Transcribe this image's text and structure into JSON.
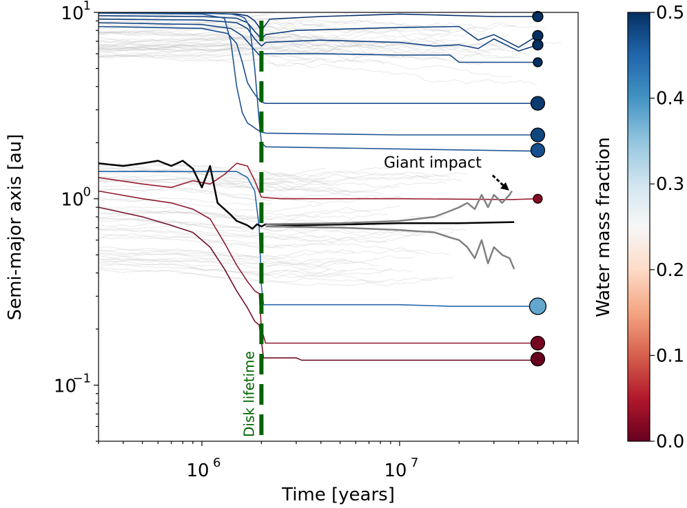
{
  "chart_data": {
    "type": "line",
    "xlabel": "Time [years]",
    "ylabel": "Semi-major axis [au]",
    "x_scale": "log",
    "y_scale": "log",
    "xlim": [
      300000,
      80000000
    ],
    "ylim": [
      0.05,
      10
    ],
    "x_ticks": [
      {
        "value": 1000000,
        "base": "10",
        "exp": "6"
      },
      {
        "value": 10000000,
        "base": "10",
        "exp": "7"
      }
    ],
    "y_ticks": [
      {
        "value": 0.1,
        "base": "10",
        "exp": "−1"
      },
      {
        "value": 1,
        "base": "10",
        "exp": "0"
      },
      {
        "value": 10,
        "base": "10",
        "exp": "1"
      }
    ],
    "colorbar": {
      "label": "Water mass fraction",
      "range": [
        0.0,
        0.5
      ],
      "tick_labels": [
        "0.0",
        "0.1",
        "0.2",
        "0.3",
        "0.4",
        "0.5"
      ],
      "colormap": "RdBu",
      "colors": [
        "#67001f",
        "#b2182b",
        "#d6604d",
        "#f4a582",
        "#fddbc7",
        "#f7f7f7",
        "#d1e5f0",
        "#92c5de",
        "#4393c3",
        "#2166ac",
        "#053061"
      ]
    },
    "disk_lifetime": {
      "x": 2000000,
      "label": "Disk lifetime",
      "color": "#006400"
    },
    "annotation": {
      "text": "Giant impact",
      "x": 37000000,
      "y": 1.0
    },
    "final_planets": [
      {
        "a": 9.5,
        "wmf": 0.5,
        "size": "small"
      },
      {
        "a": 7.5,
        "wmf": 0.5,
        "size": "small"
      },
      {
        "a": 6.7,
        "wmf": 0.5,
        "size": "small"
      },
      {
        "a": 5.4,
        "wmf": 0.5,
        "size": "tiny"
      },
      {
        "a": 3.25,
        "wmf": 0.49,
        "size": "medium"
      },
      {
        "a": 2.2,
        "wmf": 0.48,
        "size": "medium"
      },
      {
        "a": 1.82,
        "wmf": 0.47,
        "size": "medium"
      },
      {
        "a": 1.0,
        "wmf": 0.02,
        "size": "tiny"
      },
      {
        "a": 0.265,
        "wmf": 0.38,
        "size": "large"
      },
      {
        "a": 0.168,
        "wmf": 0.01,
        "size": "medium"
      },
      {
        "a": 0.138,
        "wmf": 0.0,
        "size": "medium"
      }
    ],
    "series": [
      {
        "color": "#08306b",
        "x": [
          300000,
          1000000,
          1500000,
          1700000,
          1850000,
          2000000,
          2200000,
          4000000,
          10000000,
          30000000,
          50000000
        ],
        "y": [
          9.9,
          9.9,
          9.8,
          9.6,
          9.0,
          8.0,
          9.2,
          9.5,
          9.8,
          9.5,
          9.5
        ]
      },
      {
        "color": "#0b3d7a",
        "x": [
          300000,
          1000000,
          1500000,
          1700000,
          1850000,
          2000000,
          2100000,
          3000000,
          10000000,
          20000000,
          25000000,
          30000000,
          40000000,
          50000000
        ],
        "y": [
          9.6,
          9.5,
          9.3,
          8.8,
          7.9,
          7.2,
          7.6,
          8.0,
          8.3,
          8.4,
          7.1,
          7.6,
          6.5,
          7.5
        ]
      },
      {
        "color": "#103f80",
        "x": [
          300000,
          1000000,
          1500000,
          1700000,
          1850000,
          2000000,
          2100000,
          4000000,
          10000000,
          15000000,
          20000000,
          25000000,
          30000000,
          40000000,
          50000000
        ],
        "y": [
          9.2,
          9.1,
          8.8,
          8.2,
          7.2,
          6.6,
          6.9,
          7.1,
          6.9,
          6.6,
          6.7,
          6.4,
          7.2,
          6.2,
          6.7
        ]
      },
      {
        "color": "#134686",
        "x": [
          300000,
          1000000,
          1400000,
          1600000,
          1800000,
          1950000,
          2050000,
          4000000,
          10000000,
          18000000,
          20000000,
          30000000,
          50000000
        ],
        "y": [
          8.8,
          8.6,
          8.2,
          7.5,
          6.5,
          5.9,
          6.0,
          6.0,
          5.9,
          5.9,
          5.4,
          5.4,
          5.4
        ]
      },
      {
        "color": "#1a4d8c",
        "x": [
          300000,
          1000000,
          1350000,
          1500000,
          1600000,
          1700000,
          1800000,
          1900000,
          2000000,
          2100000,
          3000000,
          10000000,
          50000000
        ],
        "y": [
          8.4,
          8.2,
          7.7,
          6.8,
          5.4,
          4.2,
          3.8,
          3.5,
          3.3,
          3.25,
          3.25,
          3.25,
          3.25
        ]
      },
      {
        "color": "#1d5291",
        "x": [
          300000,
          1000000,
          1300000,
          1400000,
          1500000,
          1600000,
          1700000,
          1800000,
          1900000,
          2000000,
          2100000,
          10000000,
          50000000
        ],
        "y": [
          9.9,
          9.8,
          9.3,
          7.0,
          4.0,
          2.9,
          2.55,
          2.45,
          2.35,
          2.28,
          2.25,
          2.2,
          2.2
        ]
      },
      {
        "color": "#1f5694",
        "x": [
          300000,
          1000000,
          1400000,
          1550000,
          1650000,
          1750000,
          1850000,
          1950000,
          2000000,
          2100000,
          10000000,
          50000000
        ],
        "y": [
          9.9,
          9.9,
          9.8,
          9.6,
          9.3,
          8.3,
          5.0,
          2.6,
          2.0,
          1.9,
          1.85,
          1.8
        ]
      },
      {
        "color": "#2166ac",
        "x": [
          300000,
          1500000,
          1700000,
          1850000,
          1950000,
          2000000,
          2050000,
          10000000,
          18000000,
          50000000
        ],
        "y": [
          1.4,
          1.4,
          1.3,
          1.1,
          0.7,
          0.34,
          0.27,
          0.27,
          0.265,
          0.265
        ]
      },
      {
        "color": "#9b1b30",
        "x": [
          300000,
          500000,
          700000,
          900000,
          1100000,
          1300000,
          1500000,
          1700000,
          1850000,
          2000000,
          2500000,
          10000000,
          37000000,
          50000000
        ],
        "y": [
          1.3,
          1.2,
          1.15,
          1.25,
          1.2,
          1.35,
          1.55,
          1.5,
          1.25,
          1.02,
          1.0,
          1.0,
          0.99,
          1.0
        ]
      },
      {
        "color": "#8c1a2e",
        "x": [
          300000,
          500000,
          700000,
          900000,
          1100000,
          1300000,
          1500000,
          1700000,
          1850000,
          1950000,
          2000000,
          2100000,
          50000000
        ],
        "y": [
          1.1,
          1.0,
          0.95,
          0.88,
          0.78,
          0.58,
          0.44,
          0.36,
          0.32,
          0.31,
          0.2,
          0.168,
          0.168
        ]
      },
      {
        "color": "#6f0f26",
        "x": [
          300000,
          500000,
          700000,
          900000,
          1100000,
          1300000,
          1500000,
          1700000,
          1850000,
          1950000,
          2050000,
          3000000,
          3200000,
          18000000,
          50000000
        ],
        "y": [
          0.9,
          0.8,
          0.72,
          0.66,
          0.55,
          0.42,
          0.32,
          0.26,
          0.22,
          0.21,
          0.14,
          0.14,
          0.136,
          0.136,
          0.136
        ]
      },
      {
        "color": "#000000",
        "width": 2.5,
        "x": [
          300000,
          400000,
          500000,
          600000,
          700000,
          800000,
          900000,
          1000000,
          1100000,
          1200000,
          1300000,
          1400000,
          1500000,
          1600000,
          1700000,
          1800000,
          1900000,
          2000000,
          2100000,
          3000000,
          6000000,
          10000000,
          20000000,
          38000000
        ],
        "y": [
          1.55,
          1.5,
          1.55,
          1.6,
          1.5,
          1.6,
          1.45,
          1.15,
          1.5,
          0.95,
          0.88,
          0.82,
          0.76,
          0.74,
          0.72,
          0.69,
          0.73,
          0.71,
          0.73,
          0.72,
          0.73,
          0.74,
          0.74,
          0.75
        ]
      },
      {
        "color": "#808080",
        "width": 2.5,
        "x": [
          2100000,
          5000000,
          10000000,
          15000000,
          18000000,
          20000000,
          22000000,
          24000000,
          26000000,
          28000000,
          30000000,
          33000000,
          36000000,
          37000000
        ],
        "y": [
          0.73,
          0.74,
          0.76,
          0.8,
          0.86,
          0.9,
          0.95,
          0.88,
          1.05,
          0.9,
          1.05,
          0.95,
          1.05,
          1.1
        ]
      },
      {
        "color": "#808080",
        "width": 2.5,
        "x": [
          2100000,
          5000000,
          10000000,
          15000000,
          18000000,
          20000000,
          22000000,
          24000000,
          26000000,
          28000000,
          30000000,
          33000000,
          36000000,
          38000000
        ],
        "y": [
          0.71,
          0.7,
          0.68,
          0.66,
          0.62,
          0.6,
          0.55,
          0.48,
          0.6,
          0.45,
          0.55,
          0.5,
          0.48,
          0.42
        ]
      }
    ]
  }
}
